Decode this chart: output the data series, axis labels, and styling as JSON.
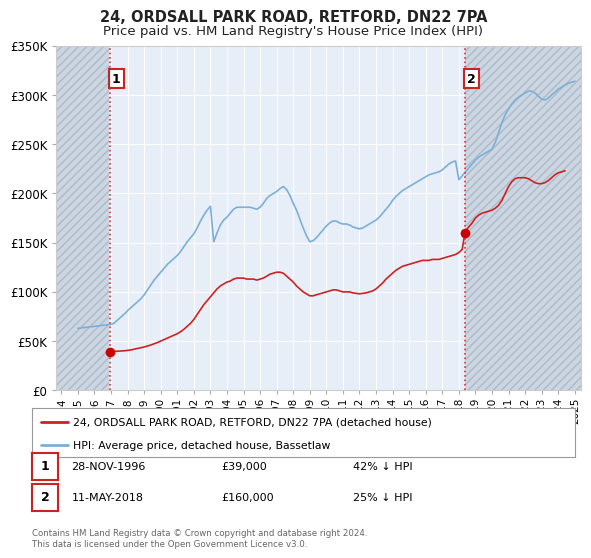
{
  "title": "24, ORDSALL PARK ROAD, RETFORD, DN22 7PA",
  "subtitle": "Price paid vs. HM Land Registry's House Price Index (HPI)",
  "title_fontsize": 10.5,
  "subtitle_fontsize": 9.5,
  "ylim": [
    0,
    350000
  ],
  "xlim_start": 1993.7,
  "xlim_end": 2025.4,
  "background_color": "#ffffff",
  "plot_bg_color": "#e8eef8",
  "grid_color": "#ffffff",
  "hatch_left_end": 1996.85,
  "hatch_right_start": 2018.35,
  "sale1_x": 1996.91,
  "sale1_y": 39000,
  "sale2_x": 2018.37,
  "sale2_y": 160000,
  "vline_color": "#dd3333",
  "sale_marker_color": "#cc0000",
  "sale_marker_size": 7,
  "hpi_color": "#7ab0d8",
  "price_color": "#cc2222",
  "legend_label_price": "24, ORDSALL PARK ROAD, RETFORD, DN22 7PA (detached house)",
  "legend_label_hpi": "HPI: Average price, detached house, Bassetlaw",
  "footer_text": "Contains HM Land Registry data © Crown copyright and database right 2024.\nThis data is licensed under the Open Government Licence v3.0.",
  "annotation1_label": "1",
  "annotation1_date": "28-NOV-1996",
  "annotation1_price": "£39,000",
  "annotation1_hpi": "42% ↓ HPI",
  "annotation2_label": "2",
  "annotation2_date": "11-MAY-2018",
  "annotation2_price": "£160,000",
  "annotation2_hpi": "25% ↓ HPI",
  "yticks": [
    0,
    50000,
    100000,
    150000,
    200000,
    250000,
    300000,
    350000
  ],
  "ytick_labels": [
    "£0",
    "£50K",
    "£100K",
    "£150K",
    "£200K",
    "£250K",
    "£300K",
    "£350K"
  ],
  "xticks": [
    1994,
    1995,
    1996,
    1997,
    1998,
    1999,
    2000,
    2001,
    2002,
    2003,
    2004,
    2005,
    2006,
    2007,
    2008,
    2009,
    2010,
    2011,
    2012,
    2013,
    2014,
    2015,
    2016,
    2017,
    2018,
    2019,
    2020,
    2021,
    2022,
    2023,
    2024,
    2025
  ],
  "hpi_data_x": [
    1995.0,
    1995.1,
    1995.2,
    1995.3,
    1995.4,
    1995.5,
    1995.6,
    1995.7,
    1995.8,
    1995.9,
    1996.0,
    1996.1,
    1996.2,
    1996.3,
    1996.4,
    1996.5,
    1996.6,
    1996.7,
    1996.8,
    1996.9,
    1997.0,
    1997.1,
    1997.2,
    1997.3,
    1997.4,
    1997.5,
    1997.6,
    1997.7,
    1997.8,
    1997.9,
    1998.0,
    1998.2,
    1998.4,
    1998.6,
    1998.8,
    1999.0,
    1999.2,
    1999.4,
    1999.6,
    1999.8,
    2000.0,
    2000.2,
    2000.4,
    2000.6,
    2000.8,
    2001.0,
    2001.2,
    2001.4,
    2001.6,
    2001.8,
    2002.0,
    2002.2,
    2002.4,
    2002.6,
    2002.8,
    2003.0,
    2003.2,
    2003.4,
    2003.6,
    2003.8,
    2004.0,
    2004.2,
    2004.4,
    2004.6,
    2004.8,
    2005.0,
    2005.2,
    2005.4,
    2005.6,
    2005.8,
    2006.0,
    2006.2,
    2006.4,
    2006.6,
    2006.8,
    2007.0,
    2007.2,
    2007.4,
    2007.6,
    2007.8,
    2008.0,
    2008.2,
    2008.4,
    2008.6,
    2008.8,
    2009.0,
    2009.2,
    2009.4,
    2009.6,
    2009.8,
    2010.0,
    2010.2,
    2010.4,
    2010.6,
    2010.8,
    2011.0,
    2011.2,
    2011.4,
    2011.6,
    2011.8,
    2012.0,
    2012.2,
    2012.4,
    2012.6,
    2012.8,
    2013.0,
    2013.2,
    2013.4,
    2013.6,
    2013.8,
    2014.0,
    2014.2,
    2014.4,
    2014.6,
    2014.8,
    2015.0,
    2015.2,
    2015.4,
    2015.6,
    2015.8,
    2016.0,
    2016.2,
    2016.4,
    2016.6,
    2016.8,
    2017.0,
    2017.2,
    2017.4,
    2017.6,
    2017.8,
    2018.0,
    2018.2,
    2018.4,
    2018.6,
    2018.8,
    2019.0,
    2019.2,
    2019.4,
    2019.6,
    2019.8,
    2020.0,
    2020.2,
    2020.4,
    2020.6,
    2020.8,
    2021.0,
    2021.2,
    2021.4,
    2021.6,
    2021.8,
    2022.0,
    2022.2,
    2022.4,
    2022.6,
    2022.8,
    2023.0,
    2023.2,
    2023.4,
    2023.6,
    2023.8,
    2024.0,
    2024.2,
    2024.4,
    2024.6,
    2024.8,
    2025.0
  ],
  "hpi_data_y": [
    63000,
    63200,
    63400,
    63600,
    63800,
    64000,
    64200,
    64400,
    64600,
    64800,
    65000,
    65200,
    65400,
    65600,
    65800,
    66000,
    66200,
    66400,
    66600,
    66800,
    67000,
    67500,
    68500,
    70000,
    71500,
    73000,
    74500,
    76000,
    77500,
    79000,
    81000,
    84000,
    87000,
    90000,
    93000,
    97000,
    102000,
    107000,
    112000,
    116000,
    120000,
    124000,
    128000,
    131000,
    134000,
    137000,
    141000,
    146000,
    151000,
    155000,
    159000,
    165000,
    172000,
    178000,
    183000,
    187000,
    151000,
    160000,
    168000,
    173000,
    176000,
    180000,
    184000,
    186000,
    186000,
    186000,
    186000,
    186000,
    185000,
    184000,
    186000,
    190000,
    195000,
    198000,
    200000,
    202000,
    205000,
    207000,
    204000,
    198000,
    190000,
    183000,
    174000,
    165000,
    157000,
    151000,
    152000,
    155000,
    159000,
    163000,
    167000,
    170000,
    172000,
    172000,
    170000,
    169000,
    169000,
    168000,
    166000,
    165000,
    164000,
    165000,
    167000,
    169000,
    171000,
    173000,
    176000,
    180000,
    184000,
    188000,
    193000,
    197000,
    200000,
    203000,
    205000,
    207000,
    209000,
    211000,
    213000,
    215000,
    217000,
    219000,
    220000,
    221000,
    222000,
    224000,
    227000,
    230000,
    232000,
    233000,
    214000,
    218000,
    222000,
    226000,
    230000,
    234000,
    237000,
    239000,
    241000,
    243000,
    245000,
    252000,
    262000,
    272000,
    280000,
    286000,
    291000,
    295000,
    298000,
    300000,
    302000,
    304000,
    304000,
    302000,
    299000,
    296000,
    295000,
    297000,
    300000,
    303000,
    306000,
    308000,
    310000,
    312000,
    313000,
    314000
  ],
  "price_data_x": [
    1996.91,
    1997.0,
    1997.1,
    1997.2,
    1997.3,
    1997.4,
    1997.5,
    1997.6,
    1997.7,
    1997.8,
    1997.9,
    1998.0,
    1998.2,
    1998.4,
    1998.6,
    1998.8,
    1999.0,
    1999.2,
    1999.4,
    1999.6,
    1999.8,
    2000.0,
    2000.2,
    2000.4,
    2000.6,
    2000.8,
    2001.0,
    2001.2,
    2001.4,
    2001.6,
    2001.8,
    2002.0,
    2002.2,
    2002.4,
    2002.6,
    2002.8,
    2003.0,
    2003.2,
    2003.4,
    2003.6,
    2003.8,
    2004.0,
    2004.2,
    2004.4,
    2004.6,
    2004.8,
    2005.0,
    2005.2,
    2005.4,
    2005.6,
    2005.8,
    2006.0,
    2006.2,
    2006.4,
    2006.6,
    2006.8,
    2007.0,
    2007.2,
    2007.4,
    2007.6,
    2007.8,
    2008.0,
    2008.2,
    2008.4,
    2008.6,
    2008.8,
    2009.0,
    2009.2,
    2009.4,
    2009.6,
    2009.8,
    2010.0,
    2010.2,
    2010.4,
    2010.6,
    2010.8,
    2011.0,
    2011.2,
    2011.4,
    2011.6,
    2011.8,
    2012.0,
    2012.2,
    2012.4,
    2012.6,
    2012.8,
    2013.0,
    2013.2,
    2013.4,
    2013.6,
    2013.8,
    2014.0,
    2014.2,
    2014.4,
    2014.6,
    2014.8,
    2015.0,
    2015.2,
    2015.4,
    2015.6,
    2015.8,
    2016.0,
    2016.2,
    2016.4,
    2016.6,
    2016.8,
    2017.0,
    2017.2,
    2017.4,
    2017.6,
    2017.8,
    2018.0,
    2018.2,
    2018.37,
    2018.5,
    2018.8,
    2019.0,
    2019.2,
    2019.4,
    2019.6,
    2019.8,
    2020.0,
    2020.2,
    2020.4,
    2020.6,
    2020.8,
    2021.0,
    2021.2,
    2021.4,
    2021.6,
    2021.8,
    2022.0,
    2022.2,
    2022.4,
    2022.6,
    2022.8,
    2023.0,
    2023.2,
    2023.4,
    2023.6,
    2023.8,
    2024.0,
    2024.2,
    2024.4
  ],
  "price_data_y": [
    39000,
    39200,
    39400,
    39500,
    39600,
    39700,
    39800,
    39900,
    40000,
    40100,
    40300,
    40500,
    41000,
    41800,
    42500,
    43200,
    44000,
    45000,
    46000,
    47200,
    48500,
    50000,
    51500,
    53000,
    54500,
    56000,
    57500,
    59500,
    62000,
    65000,
    68000,
    72000,
    77000,
    82000,
    87000,
    91000,
    95000,
    99000,
    103000,
    106000,
    108000,
    110000,
    111000,
    113000,
    114000,
    114000,
    114000,
    113000,
    113000,
    113000,
    112000,
    113000,
    114000,
    116000,
    118000,
    119000,
    120000,
    120000,
    119000,
    116000,
    113000,
    110000,
    106000,
    103000,
    100000,
    98000,
    96000,
    96000,
    97000,
    98000,
    99000,
    100000,
    101000,
    102000,
    102000,
    101000,
    100000,
    100000,
    100000,
    99000,
    98500,
    98000,
    98500,
    99000,
    100000,
    101000,
    103000,
    106000,
    109000,
    113000,
    116000,
    119000,
    122000,
    124000,
    126000,
    127000,
    128000,
    129000,
    130000,
    131000,
    132000,
    132000,
    132000,
    133000,
    133000,
    133000,
    134000,
    135000,
    136000,
    137000,
    138000,
    140000,
    143000,
    160000,
    164000,
    170000,
    175000,
    178000,
    180000,
    181000,
    182000,
    183000,
    185000,
    188000,
    193000,
    200000,
    207000,
    212000,
    215000,
    216000,
    216000,
    216000,
    215000,
    213000,
    211000,
    210000,
    210000,
    211000,
    213000,
    216000,
    219000,
    221000,
    222000,
    223000
  ]
}
